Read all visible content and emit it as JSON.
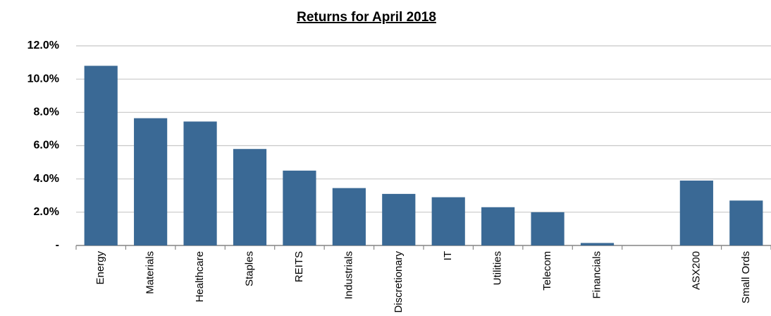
{
  "chart_data": {
    "type": "bar",
    "title": "Returns for April 2018",
    "categories": [
      "Energy",
      "Materials",
      "Healthcare",
      "Staples",
      "REITS",
      "Industrials",
      "Discretionary",
      "IT",
      "Utilities",
      "Telecom",
      "Financials",
      null,
      "ASX200",
      "Small Ords"
    ],
    "values": [
      10.8,
      7.65,
      7.45,
      5.8,
      4.5,
      3.45,
      3.1,
      2.9,
      2.3,
      2.0,
      0.15,
      null,
      3.9,
      2.7
    ],
    "color": "#3a6995",
    "ylim": [
      0,
      12
    ],
    "yticks": [
      {
        "value": 0,
        "label": "-"
      },
      {
        "value": 2,
        "label": "2.0%"
      },
      {
        "value": 4,
        "label": "4.0%"
      },
      {
        "value": 6,
        "label": "6.0%"
      },
      {
        "value": 8,
        "label": "8.0%"
      },
      {
        "value": 10,
        "label": "10.0%"
      },
      {
        "value": 12,
        "label": "12.0%"
      }
    ],
    "grid": true
  }
}
